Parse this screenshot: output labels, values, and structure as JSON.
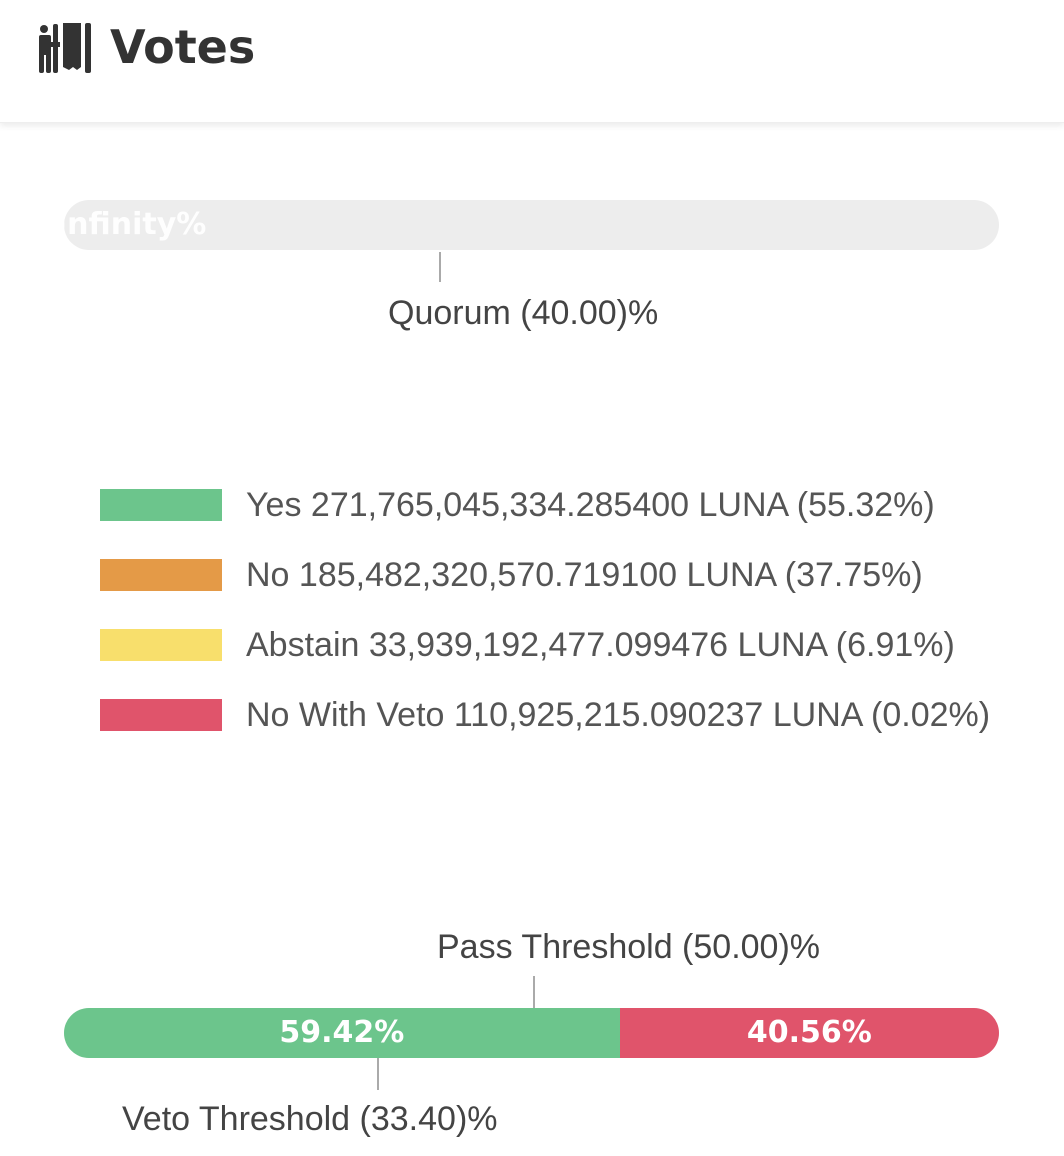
{
  "header": {
    "title": "Votes",
    "icon": "person-voting-icon"
  },
  "quorum": {
    "bar_label": "Infinity%",
    "marker_label": "Quorum (40.00)%",
    "quorum_percent": 40
  },
  "legend": [
    {
      "label": "Yes 271,765,045,334.285400 LUNA (55.32%)",
      "color": "#6cc58c"
    },
    {
      "label": "No 185,482,320,570.719100 LUNA (37.75%)",
      "color": "#e49a47"
    },
    {
      "label": "Abstain 33,939,192,477.099476 LUNA (6.91%)",
      "color": "#f8df6c"
    },
    {
      "label": "No With Veto 110,925,215.090237 LUNA (0.02%)",
      "color": "#e0546b"
    }
  ],
  "threshold": {
    "pass_label": "Pass Threshold (50.00)%",
    "pass_percent": 50,
    "veto_label": "Veto Threshold (33.40)%",
    "veto_percent": 33.4,
    "yes_label": "59.42%",
    "yes_percent": 59.42,
    "yes_color": "#6cc58c",
    "no_label": "40.56%",
    "no_percent": 40.56,
    "no_color": "#e0546b"
  }
}
